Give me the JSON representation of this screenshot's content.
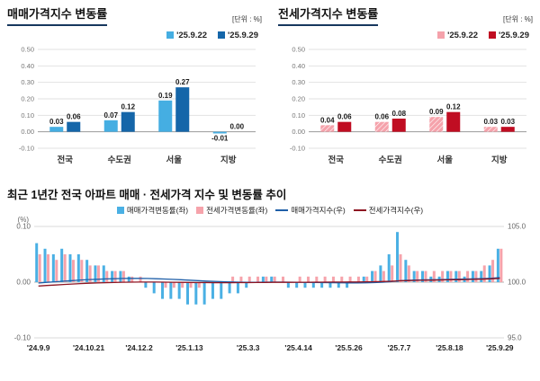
{
  "panels": {
    "sales": {
      "title": "매매가격지수 변동률",
      "unit_label": "[단위 : %]",
      "legend": [
        {
          "label": "'25.9.22",
          "color": "#45aee2",
          "type": "bar"
        },
        {
          "label": "'25.9.29",
          "color": "#1566a9",
          "type": "bar"
        }
      ]
    },
    "jeonse": {
      "title": "전세가격지수 변동률",
      "unit_label": "[단위 : %]",
      "legend": [
        {
          "label": "'25.9.22",
          "color": "#f5a2ab",
          "type": "bar"
        },
        {
          "label": "'25.9.29",
          "color": "#c00d22",
          "type": "bar"
        }
      ]
    },
    "trend": {
      "title": "최근 1년간 전국 아파트 매매 · 전세가격 지수 및 변동률 추이",
      "legend": [
        {
          "label": "매매가격변동률(좌)",
          "color": "#4ab0e4",
          "type": "bar"
        },
        {
          "label": "전세가격변동률(좌)",
          "color": "#f6a3ab",
          "type": "bar"
        },
        {
          "label": "매매가격지수(우)",
          "color": "#1f5fa8",
          "type": "line"
        },
        {
          "label": "전세가격지수(우)",
          "color": "#8e1522",
          "type": "line"
        }
      ]
    }
  },
  "chart_data": [
    {
      "id": "sales-bar",
      "type": "bar",
      "title": "매매가격지수 변동률",
      "unit": "%",
      "categories": [
        "전국",
        "수도권",
        "서울",
        "지방"
      ],
      "series": [
        {
          "name": "'25.9.22",
          "color": "#45aee2",
          "hatch": false,
          "values": [
            0.03,
            0.07,
            0.19,
            -0.01
          ]
        },
        {
          "name": "'25.9.29",
          "color": "#1566a9",
          "hatch": false,
          "values": [
            0.06,
            0.12,
            0.27,
            0.0
          ]
        }
      ],
      "ylim": [
        -0.1,
        0.5
      ],
      "yticks": [
        0.5,
        0.4,
        0.3,
        0.2,
        0.1,
        0.0,
        -0.1
      ]
    },
    {
      "id": "jeonse-bar",
      "type": "bar",
      "title": "전세가격지수 변동률",
      "unit": "%",
      "categories": [
        "전국",
        "수도권",
        "서울",
        "지방"
      ],
      "series": [
        {
          "name": "'25.9.22",
          "color": "#f5a2ab",
          "hatch": true,
          "values": [
            0.04,
            0.06,
            0.09,
            0.03
          ]
        },
        {
          "name": "'25.9.29",
          "color": "#c00d22",
          "hatch": false,
          "values": [
            0.06,
            0.08,
            0.12,
            0.03
          ]
        }
      ],
      "ylim": [
        -0.1,
        0.5
      ],
      "yticks": [
        0.5,
        0.4,
        0.3,
        0.2,
        0.1,
        0.0,
        -0.1
      ]
    },
    {
      "id": "trend",
      "type": "bar+line",
      "title": "최근 1년간 전국 아파트 매매 · 전세가격 지수 및 변동률 추이",
      "weeks": 56,
      "bar_series": [
        {
          "name": "매매가격변동률(좌)",
          "color": "#4ab0e4",
          "values": [
            0.07,
            0.06,
            0.05,
            0.06,
            0.05,
            0.05,
            0.04,
            0.03,
            0.03,
            0.02,
            0.02,
            0.01,
            0.0,
            -0.01,
            -0.02,
            -0.03,
            -0.03,
            -0.03,
            -0.04,
            -0.04,
            -0.04,
            -0.03,
            -0.03,
            -0.02,
            -0.02,
            -0.01,
            0.0,
            0.01,
            0.01,
            0.0,
            -0.01,
            -0.01,
            -0.01,
            -0.01,
            -0.01,
            -0.01,
            -0.01,
            -0.01,
            0.0,
            0.01,
            0.02,
            0.03,
            0.05,
            0.09,
            0.04,
            0.02,
            0.02,
            0.01,
            0.01,
            0.02,
            0.02,
            0.01,
            0.02,
            0.02,
            0.03,
            0.06
          ]
        },
        {
          "name": "전세가격변동률(좌)",
          "color": "#f6a3ab",
          "values": [
            0.05,
            0.05,
            0.04,
            0.05,
            0.04,
            0.04,
            0.03,
            0.03,
            0.02,
            0.02,
            0.02,
            0.01,
            0.01,
            0.0,
            0.0,
            -0.01,
            -0.01,
            -0.01,
            -0.01,
            -0.01,
            0.0,
            0.0,
            0.0,
            0.01,
            0.01,
            0.01,
            0.01,
            0.01,
            0.01,
            0.01,
            0.0,
            0.01,
            0.01,
            0.01,
            0.01,
            0.01,
            0.01,
            0.01,
            0.01,
            0.01,
            0.02,
            0.02,
            0.03,
            0.05,
            0.03,
            0.02,
            0.02,
            0.02,
            0.02,
            0.02,
            0.02,
            0.02,
            0.02,
            0.03,
            0.04,
            0.06
          ]
        }
      ],
      "line_series": [
        {
          "name": "매매가격지수(우)",
          "color": "#1f5fa8",
          "values": [
            99.92,
            99.98,
            100.03,
            100.09,
            100.14,
            100.19,
            100.23,
            100.26,
            100.29,
            100.31,
            100.33,
            100.34,
            100.34,
            100.33,
            100.31,
            100.28,
            100.25,
            100.22,
            100.18,
            100.14,
            100.1,
            100.07,
            100.04,
            100.02,
            100.0,
            99.99,
            99.99,
            100.0,
            100.01,
            100.01,
            100.0,
            99.99,
            99.98,
            99.97,
            99.96,
            99.95,
            99.94,
            99.93,
            99.93,
            99.94,
            99.96,
            99.99,
            100.04,
            100.13,
            100.17,
            100.19,
            100.21,
            100.22,
            100.23,
            100.25,
            100.27,
            100.28,
            100.3,
            100.32,
            100.35,
            100.41
          ]
        },
        {
          "name": "전세가격지수(우)",
          "color": "#8e1522",
          "values": [
            99.65,
            99.7,
            99.74,
            99.79,
            99.83,
            99.87,
            99.9,
            99.93,
            99.95,
            99.97,
            99.99,
            100.0,
            100.01,
            100.01,
            100.01,
            100.0,
            99.99,
            99.98,
            99.97,
            99.96,
            99.96,
            99.95,
            99.95,
            99.95,
            99.96,
            99.96,
            99.97,
            99.97,
            99.98,
            99.98,
            99.98,
            99.99,
            99.99,
            100.0,
            100.0,
            100.01,
            100.01,
            100.02,
            100.02,
            100.03,
            100.04,
            100.06,
            100.08,
            100.12,
            100.14,
            100.16,
            100.17,
            100.18,
            100.19,
            100.21,
            100.22,
            100.23,
            100.25,
            100.27,
            100.3,
            100.34
          ]
        }
      ],
      "left_axis": {
        "label": "(%)",
        "lim": [
          -0.1,
          0.1
        ],
        "ticks": [
          0.1,
          0.0,
          -0.1
        ]
      },
      "right_axis": {
        "lim": [
          95.0,
          105.0
        ],
        "ticks": [
          105.0,
          100.0,
          95.0
        ]
      },
      "x_ticks": [
        {
          "week": 0,
          "label": "'24.9.9"
        },
        {
          "week": 6,
          "label": "'24.10.21"
        },
        {
          "week": 12,
          "label": "'24.12.2"
        },
        {
          "week": 18,
          "label": "'25.1.13"
        },
        {
          "week": 25,
          "label": "'25.3.3"
        },
        {
          "week": 31,
          "label": "'25.4.14"
        },
        {
          "week": 37,
          "label": "'25.5.26"
        },
        {
          "week": 43,
          "label": "'25.7.7"
        },
        {
          "week": 49,
          "label": "'25.8.18"
        },
        {
          "week": 55,
          "label": "'25.9.29"
        }
      ]
    }
  ]
}
